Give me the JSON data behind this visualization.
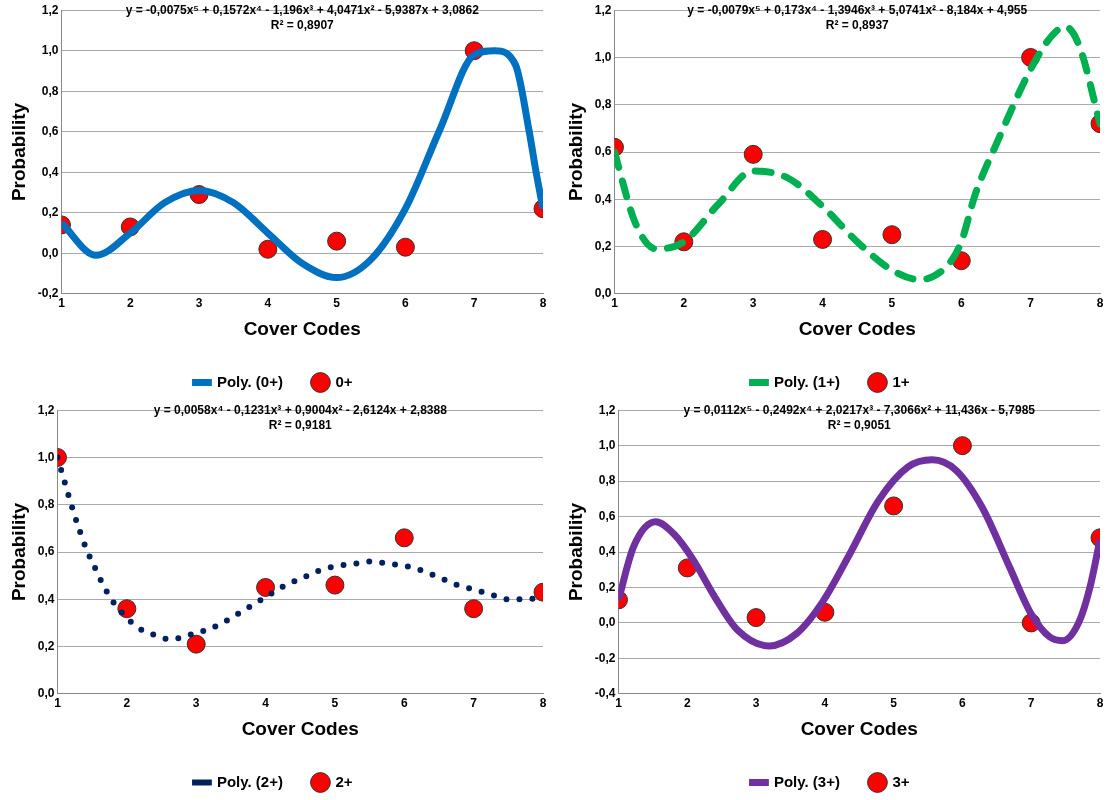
{
  "chart_data": [
    {
      "type": "scatter",
      "xlabel": "Cover Codes",
      "ylabel": "Probability",
      "annotations": [
        "y = -0,0075x⁵ + 0,1572x⁴ - 1,196x³ + 4,0471x² - 5,9387x + 3,0862",
        "R² = 0,8907"
      ],
      "xlim": [
        1,
        8
      ],
      "xticks": [
        1,
        2,
        3,
        4,
        5,
        6,
        7,
        8
      ],
      "ylim": [
        -0.2,
        1.2
      ],
      "yticks": [
        {
          "value": -0.2,
          "label": "-0,2"
        },
        {
          "value": 0,
          "label": "0,0"
        },
        {
          "value": 0.2,
          "label": "0,2"
        },
        {
          "value": 0.4,
          "label": "0,4"
        },
        {
          "value": 0.6,
          "label": "0,6"
        },
        {
          "value": 0.8,
          "label": "0,8"
        },
        {
          "value": 1,
          "label": "1,0"
        },
        {
          "value": 1.2,
          "label": "1,2"
        }
      ],
      "grid": "y",
      "legend": "bottom",
      "series": [
        {
          "name": "0+",
          "type": "scatter",
          "marker": "circle",
          "color": "#ff0000",
          "x": [
            1,
            2,
            3,
            4,
            5,
            6,
            7,
            8
          ],
          "values": [
            0.14,
            0.13,
            0.29,
            0.02,
            0.06,
            0.03,
            1.0,
            0.22
          ]
        },
        {
          "name": "Poly. (0+)",
          "type": "line",
          "marker": "none",
          "line_style": "solid",
          "color": "#0070c0",
          "x": [
            1,
            1.5,
            2,
            2.5,
            3,
            3.5,
            4,
            4.5,
            5,
            5.5,
            6,
            6.5,
            7,
            7.3,
            7.6,
            7.8,
            7.9,
            8
          ],
          "values": [
            0.15,
            -0.01,
            0.1,
            0.25,
            0.31,
            0.25,
            0.1,
            -0.05,
            -0.12,
            -0.03,
            0.22,
            0.61,
            0.98,
            1.0,
            0.93,
            0.6,
            0.4,
            0.22
          ]
        }
      ]
    },
    {
      "type": "scatter",
      "xlabel": "Cover Codes",
      "ylabel": "Probability",
      "annotations": [
        "y = -0,0079x⁵ + 0,173x⁴ - 1,3946x³ + 5,0741x² - 8,184x + 4,955",
        "R² = 0,8937"
      ],
      "xlim": [
        1,
        8
      ],
      "xticks": [
        1,
        2,
        3,
        4,
        5,
        6,
        7,
        8
      ],
      "ylim": [
        0,
        1.2
      ],
      "yticks": [
        {
          "value": 0,
          "label": "0,0"
        },
        {
          "value": 0.2,
          "label": "0,2"
        },
        {
          "value": 0.4,
          "label": "0,4"
        },
        {
          "value": 0.6,
          "label": "0,6"
        },
        {
          "value": 0.8,
          "label": "0,8"
        },
        {
          "value": 1,
          "label": "1,0"
        },
        {
          "value": 1.2,
          "label": "1,2"
        }
      ],
      "grid": "y",
      "legend": "bottom",
      "series": [
        {
          "name": "1+",
          "type": "scatter",
          "marker": "circle",
          "color": "#ff0000",
          "x": [
            1,
            2,
            3,
            4,
            5,
            6,
            7,
            8
          ],
          "values": [
            0.62,
            0.22,
            0.59,
            0.23,
            0.25,
            0.14,
            1.0,
            0.72
          ]
        },
        {
          "name": "Poly. (1+)",
          "type": "line",
          "marker": "none",
          "line_style": "dashed",
          "color": "#00b050",
          "x": [
            1,
            1.3,
            1.6,
            2,
            2.5,
            3,
            3.5,
            4,
            4.5,
            5,
            5.4,
            5.8,
            6,
            6.2,
            6.5,
            7,
            7.3,
            7.5,
            7.7,
            8
          ],
          "values": [
            0.6,
            0.3,
            0.19,
            0.22,
            0.38,
            0.52,
            0.49,
            0.37,
            0.22,
            0.1,
            0.06,
            0.12,
            0.22,
            0.42,
            0.63,
            0.95,
            1.09,
            1.13,
            1.05,
            0.72
          ]
        }
      ]
    },
    {
      "type": "scatter",
      "xlabel": "Cover Codes",
      "ylabel": "Probability",
      "annotations": [
        "y = 0,0058x⁴ - 0,1231x³ + 0,9004x² - 2,6124x + 2,8388",
        "R² = 0,9181"
      ],
      "xlim": [
        1,
        8
      ],
      "xticks": [
        1,
        2,
        3,
        4,
        5,
        6,
        7,
        8
      ],
      "ylim": [
        0,
        1.2
      ],
      "yticks": [
        {
          "value": 0,
          "label": "0,0"
        },
        {
          "value": 0.2,
          "label": "0,2"
        },
        {
          "value": 0.4,
          "label": "0,4"
        },
        {
          "value": 0.6,
          "label": "0,6"
        },
        {
          "value": 0.8,
          "label": "0,8"
        },
        {
          "value": 1,
          "label": "1,0"
        },
        {
          "value": 1.2,
          "label": "1,2"
        }
      ],
      "grid": "y",
      "legend": "bottom",
      "series": [
        {
          "name": "2+",
          "type": "scatter",
          "marker": "circle",
          "color": "#ff0000",
          "x": [
            1,
            2,
            3,
            4,
            5,
            6,
            7,
            8
          ],
          "values": [
            1.0,
            0.36,
            0.21,
            0.45,
            0.46,
            0.66,
            0.36,
            0.43
          ]
        },
        {
          "name": "Poly. (2+)",
          "type": "line",
          "marker": "none",
          "line_style": "dotted",
          "color": "#002060",
          "x": [
            1,
            1.07,
            1.23,
            1.32,
            1.42,
            1.53,
            1.66,
            1.8,
            1.97,
            2.16,
            2.39,
            2.64,
            2.91,
            3.15,
            3.38,
            3.61,
            3.84,
            4.06,
            4.29,
            4.53,
            4.76,
            5.01,
            5.27,
            5.52,
            5.77,
            6.03,
            6.27,
            6.52,
            6.77,
            7.02,
            7.25,
            7.5,
            7.75,
            8
          ],
          "values": [
            1.0,
            0.93,
            0.77,
            0.69,
            0.61,
            0.54,
            0.46,
            0.39,
            0.33,
            0.28,
            0.25,
            0.23,
            0.25,
            0.27,
            0.3,
            0.34,
            0.38,
            0.42,
            0.46,
            0.49,
            0.52,
            0.54,
            0.55,
            0.56,
            0.55,
            0.54,
            0.52,
            0.49,
            0.46,
            0.44,
            0.42,
            0.4,
            0.4,
            0.41
          ]
        }
      ]
    },
    {
      "type": "scatter",
      "xlabel": "Cover Codes",
      "ylabel": "Probability",
      "annotations": [
        "y = 0,0112x⁵ - 0,2492x⁴ + 2,0217x³ - 7,3066x² + 11,436x - 5,7985",
        "R² = 0,9051"
      ],
      "xlim": [
        1,
        8
      ],
      "xticks": [
        1,
        2,
        3,
        4,
        5,
        6,
        7,
        8
      ],
      "ylim": [
        -0.4,
        1.2
      ],
      "yticks": [
        {
          "value": -0.4,
          "label": "-0,4"
        },
        {
          "value": -0.2,
          "label": "-0,2"
        },
        {
          "value": 0,
          "label": "0,0"
        },
        {
          "value": 0.2,
          "label": "0,2"
        },
        {
          "value": 0.4,
          "label": "0,4"
        },
        {
          "value": 0.6,
          "label": "0,6"
        },
        {
          "value": 0.8,
          "label": "0,8"
        },
        {
          "value": 1,
          "label": "1,0"
        },
        {
          "value": 1.2,
          "label": "1,2"
        }
      ],
      "grid": "y",
      "legend": "bottom",
      "series": [
        {
          "name": "3+",
          "type": "scatter",
          "marker": "circle",
          "color": "#ff0000",
          "x": [
            1,
            2,
            3,
            4,
            5,
            6,
            7,
            8
          ],
          "values": [
            0.13,
            0.31,
            0.03,
            0.06,
            0.66,
            1.0,
            0.0,
            0.48
          ]
        },
        {
          "name": "Poly. (3+)",
          "type": "line",
          "marker": "none",
          "line_style": "solid",
          "color": "#7030a0",
          "x": [
            1,
            1.22,
            1.54,
            1.81,
            2.08,
            2.41,
            2.73,
            3.19,
            3.59,
            3.97,
            4.35,
            4.78,
            5.21,
            5.56,
            5.91,
            6.29,
            6.68,
            7.0,
            7.27,
            7.46,
            7.7,
            7.86,
            8
          ],
          "values": [
            0.13,
            0.43,
            0.57,
            0.5,
            0.36,
            0.14,
            -0.04,
            -0.13,
            -0.06,
            0.12,
            0.38,
            0.69,
            0.88,
            0.92,
            0.86,
            0.65,
            0.32,
            0.05,
            -0.08,
            -0.1,
            0.01,
            0.21,
            0.47
          ]
        }
      ]
    }
  ]
}
